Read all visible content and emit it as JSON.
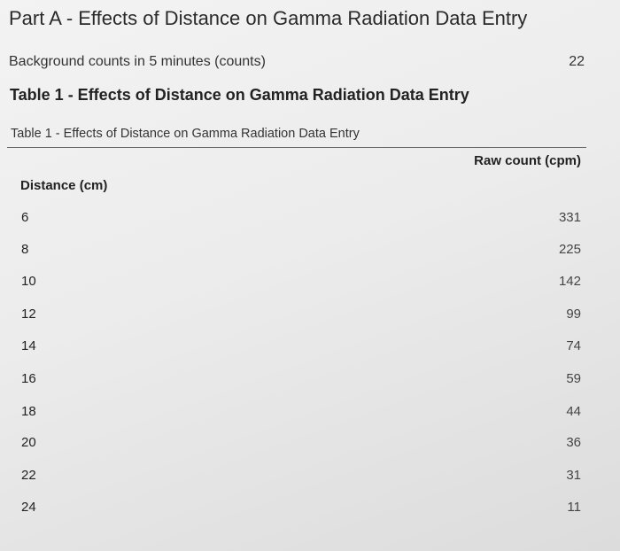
{
  "page": {
    "title": "Part A - Effects of Distance on Gamma Radiation Data Entry"
  },
  "background": {
    "label": "Background counts in 5 minutes (counts)",
    "value": "22"
  },
  "table": {
    "heading": "Table 1 - Effects of Distance on Gamma Radiation Data Entry",
    "caption": "Table 1 - Effects of Distance on Gamma Radiation Data Entry",
    "columns": {
      "distance": "Distance (cm)",
      "raw_count": "Raw count (cpm)"
    },
    "rows": [
      {
        "distance": "6",
        "raw_count": "331"
      },
      {
        "distance": "8",
        "raw_count": "225"
      },
      {
        "distance": "10",
        "raw_count": "142"
      },
      {
        "distance": "12",
        "raw_count": "99"
      },
      {
        "distance": "14",
        "raw_count": "74"
      },
      {
        "distance": "16",
        "raw_count": "59"
      },
      {
        "distance": "18",
        "raw_count": "44"
      },
      {
        "distance": "20",
        "raw_count": "36"
      },
      {
        "distance": "22",
        "raw_count": "31"
      },
      {
        "distance": "24",
        "raw_count": "11"
      }
    ]
  }
}
